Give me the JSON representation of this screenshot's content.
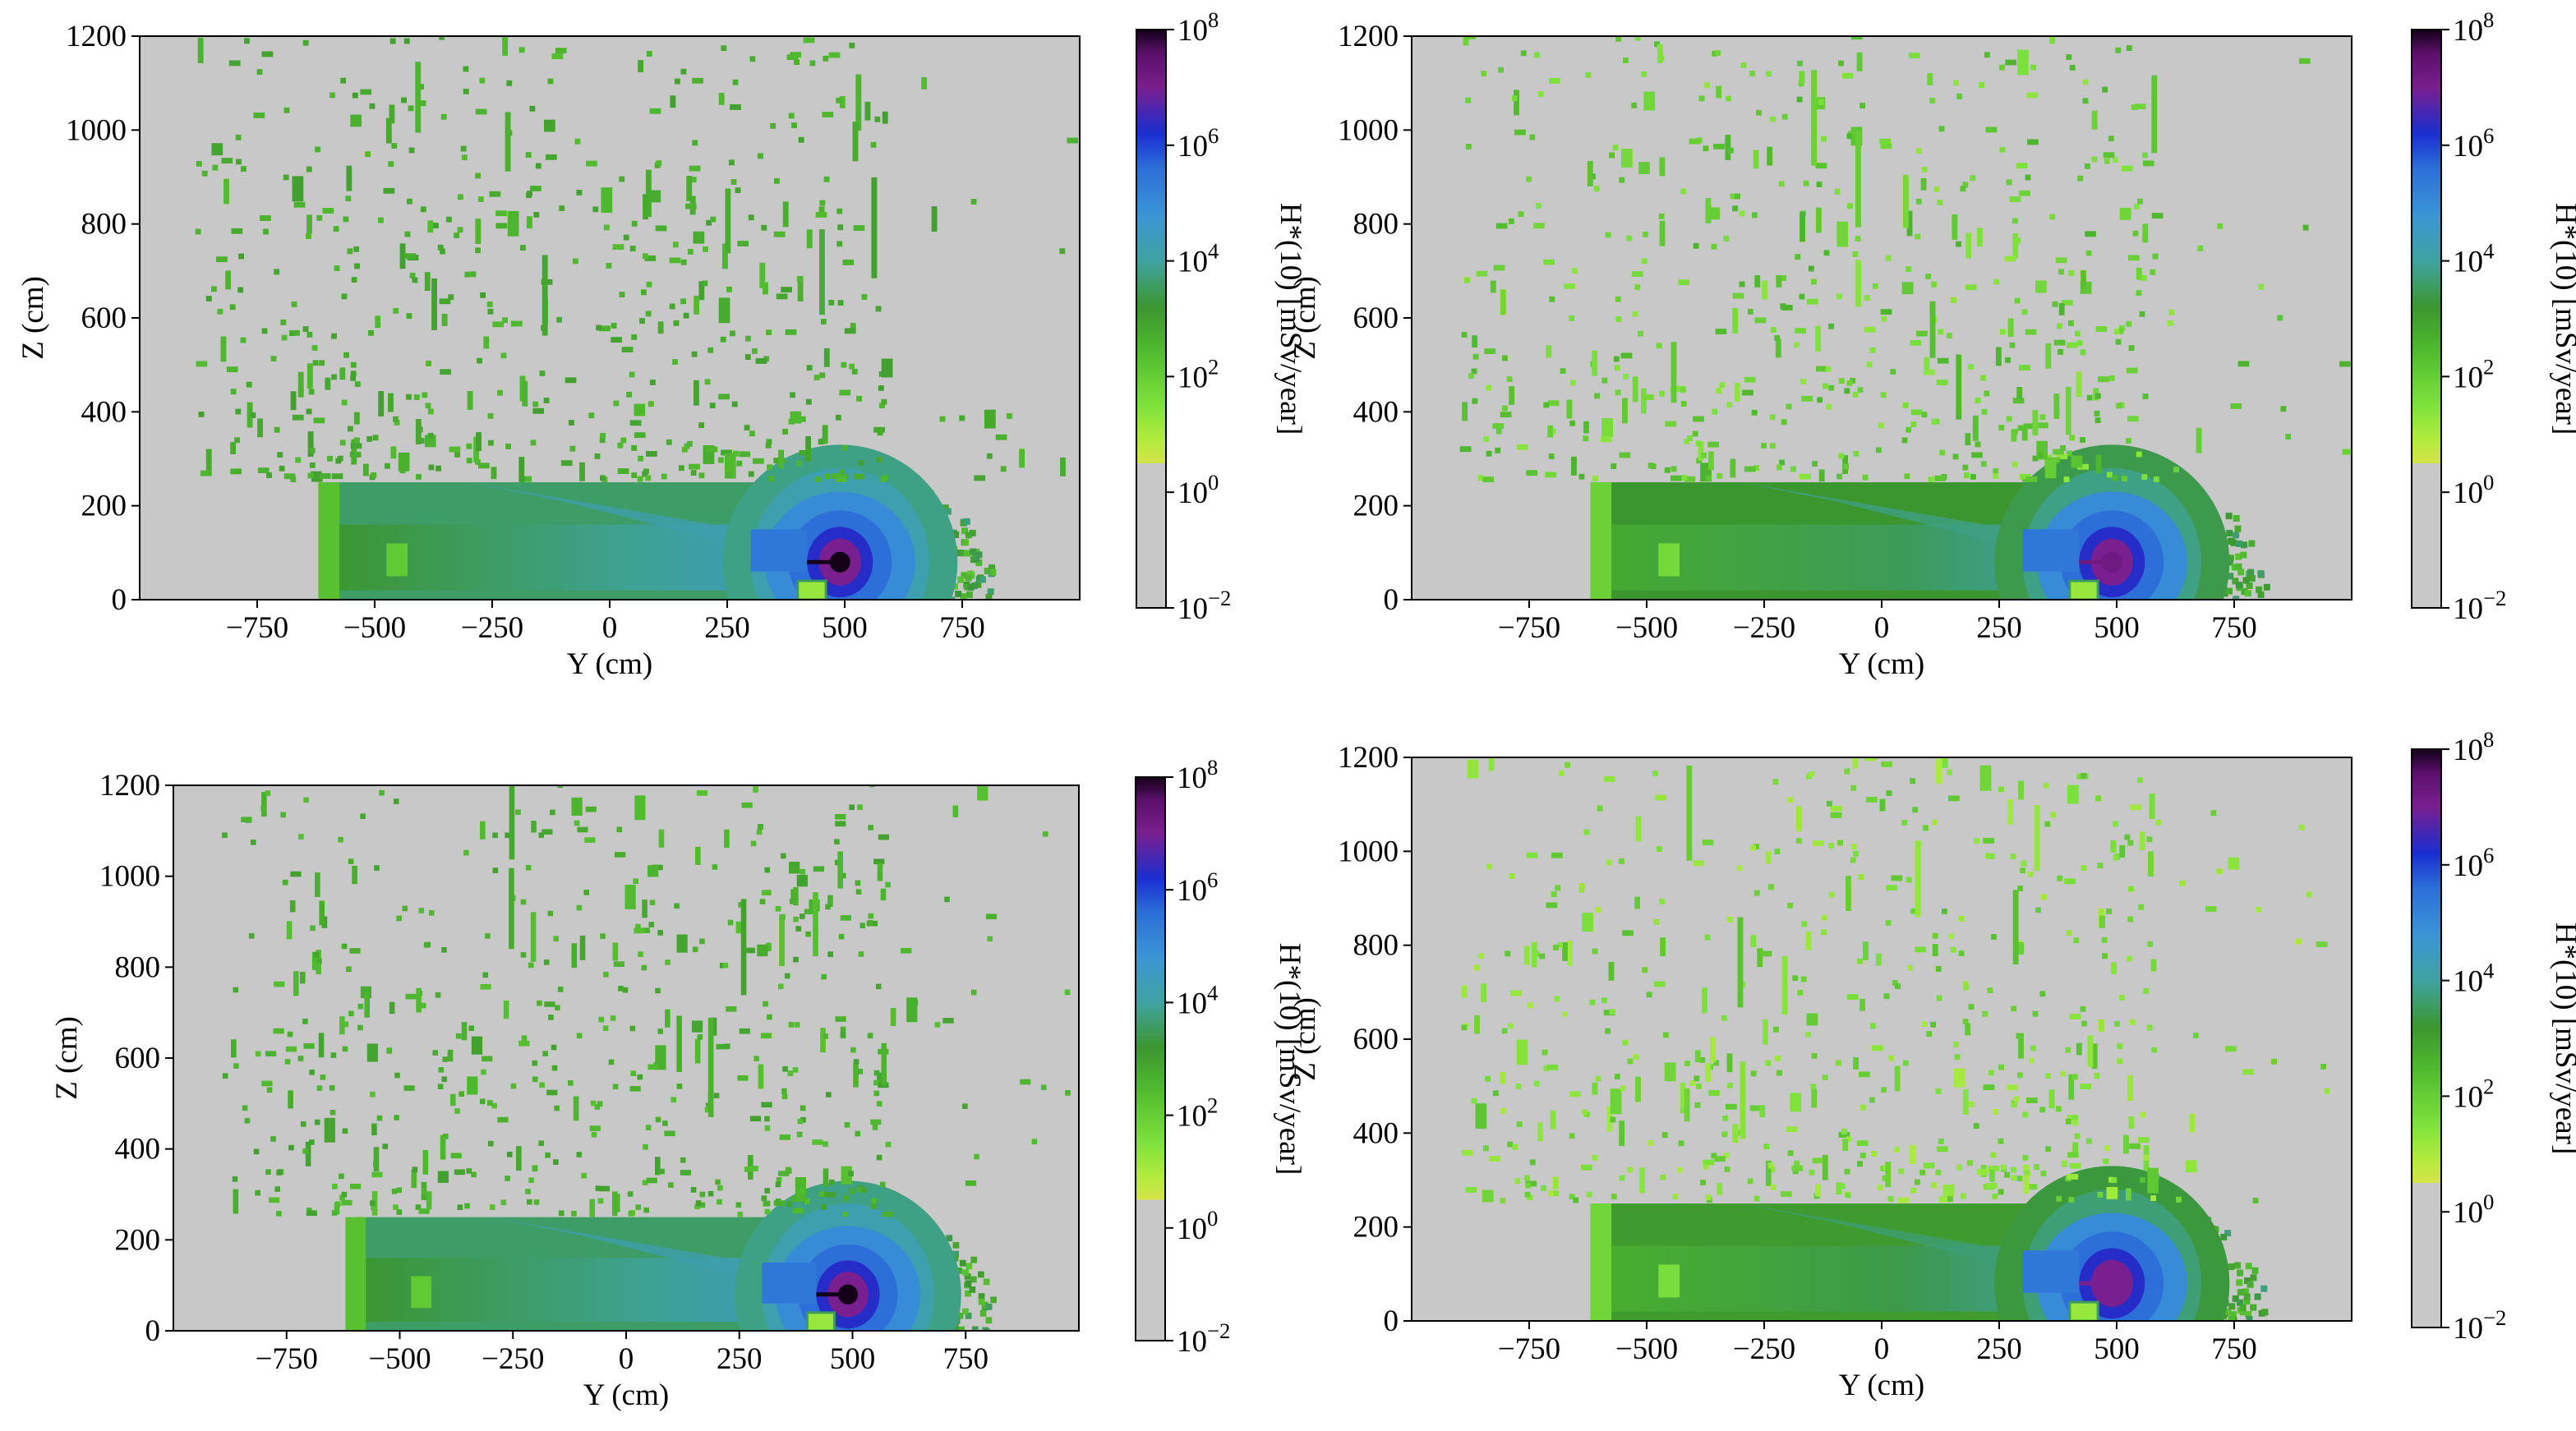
{
  "figure": {
    "panel_count": 4,
    "colors": {
      "background_gray": "#c8c8c8",
      "low_yellow": "#d6e34a",
      "light_green": "#7ee23c",
      "green": "#3f9f2a",
      "teal": "#3fa3a0",
      "sky": "#3b94d6",
      "blue": "#1a2ed0",
      "purple": "#7a1f8f",
      "dark": "#140018"
    },
    "colorbar_stops": [
      {
        "t": 0.0,
        "color": "#c8c8c8"
      },
      {
        "t": 0.2499,
        "color": "#c8c8c8"
      },
      {
        "t": 0.25,
        "color": "#d6e34a"
      },
      {
        "t": 0.29,
        "color": "#b3eb3d"
      },
      {
        "t": 0.35,
        "color": "#7ee23c"
      },
      {
        "t": 0.45,
        "color": "#4eb82e"
      },
      {
        "t": 0.52,
        "color": "#3c962f"
      },
      {
        "t": 0.6,
        "color": "#3fa3a0"
      },
      {
        "t": 0.68,
        "color": "#3b94d6"
      },
      {
        "t": 0.76,
        "color": "#2c6fd8"
      },
      {
        "t": 0.82,
        "color": "#1a2ed0"
      },
      {
        "t": 0.9,
        "color": "#7a1f8f"
      },
      {
        "t": 0.96,
        "color": "#5a0f6a"
      },
      {
        "t": 1.0,
        "color": "#140018"
      }
    ]
  },
  "chart_data": [
    {
      "type": "heatmap",
      "panel": "top-left",
      "xlabel": "Y (cm)",
      "ylabel": "Z (cm)",
      "xlim": [
        -1000,
        1000
      ],
      "ylim": [
        0,
        1200
      ],
      "xticks": [
        -750,
        -500,
        -250,
        0,
        250,
        500,
        750
      ],
      "yticks": [
        0,
        200,
        400,
        600,
        800,
        1000,
        1200
      ],
      "xtick_labels": [
        "−750",
        "−500",
        "−250",
        "0",
        "250",
        "500",
        "750"
      ],
      "ytick_labels": [
        "0",
        "200",
        "400",
        "600",
        "800",
        "1000",
        "1200"
      ],
      "colorbar": {
        "label": "H*(10) [mSv/year]",
        "scale": "log",
        "exp_range": [
          -2,
          8
        ],
        "tick_base": "10",
        "tick_exponents": [
          "8",
          "6",
          "4",
          "2",
          "0",
          "−2"
        ],
        "tick_values": [
          8,
          6,
          4,
          2,
          0,
          -2
        ]
      },
      "peak_location": {
        "y": 490,
        "z": 80
      },
      "peak_exp": 8,
      "shield_region": {
        "y": [
          -600,
          470
        ],
        "z": [
          0,
          250
        ]
      },
      "shield_surface_exp": 3.6,
      "scatter_exp_range": [
        2.4,
        3.0
      ]
    },
    {
      "type": "heatmap",
      "panel": "top-right",
      "xlabel": "Y (cm)",
      "ylabel": "Z (cm)",
      "xlim": [
        -1000,
        1000
      ],
      "ylim": [
        0,
        1200
      ],
      "xticks": [
        -750,
        -500,
        -250,
        0,
        250,
        500,
        750
      ],
      "yticks": [
        0,
        200,
        400,
        600,
        800,
        1000,
        1200
      ],
      "xtick_labels": [
        "−750",
        "−500",
        "−250",
        "0",
        "250",
        "500",
        "750"
      ],
      "ytick_labels": [
        "0",
        "200",
        "400",
        "600",
        "800",
        "1000",
        "1200"
      ],
      "colorbar": {
        "label": "H*(10) [mSv/year]",
        "scale": "log",
        "exp_range": [
          -2,
          8
        ],
        "tick_base": "10",
        "tick_exponents": [
          "8",
          "6",
          "4",
          "2",
          "0",
          "−2"
        ],
        "tick_values": [
          8,
          6,
          4,
          2,
          0,
          -2
        ]
      },
      "peak_location": {
        "y": 490,
        "z": 80
      },
      "peak_exp": 7.2,
      "shield_region": {
        "y": [
          -600,
          470
        ],
        "z": [
          0,
          250
        ]
      },
      "shield_surface_exp": 3.2,
      "scatter_exp_range": [
        1.3,
        2.6
      ]
    },
    {
      "type": "heatmap",
      "panel": "bottom-left",
      "xlabel": "Y (cm)",
      "ylabel": "Z (cm)",
      "xlim": [
        -1000,
        1000
      ],
      "ylim": [
        0,
        1200
      ],
      "xticks": [
        -750,
        -500,
        -250,
        0,
        250,
        500,
        750
      ],
      "yticks": [
        0,
        200,
        400,
        600,
        800,
        1000,
        1200
      ],
      "xtick_labels": [
        "−750",
        "−500",
        "−250",
        "0",
        "250",
        "500",
        "750"
      ],
      "ytick_labels": [
        "0",
        "200",
        "400",
        "600",
        "800",
        "1000",
        "1200"
      ],
      "colorbar": {
        "label": "H*(10) [mSv/year]",
        "scale": "log",
        "exp_range": [
          -2,
          8
        ],
        "tick_base": "10",
        "tick_exponents": [
          "8",
          "6",
          "4",
          "2",
          "0",
          "−2"
        ],
        "tick_values": [
          8,
          6,
          4,
          2,
          0,
          -2
        ]
      },
      "peak_location": {
        "y": 490,
        "z": 80
      },
      "peak_exp": 8,
      "shield_region": {
        "y": [
          -600,
          470
        ],
        "z": [
          0,
          250
        ]
      },
      "shield_surface_exp": 3.6,
      "scatter_exp_range": [
        2.3,
        3.0
      ]
    },
    {
      "type": "heatmap",
      "panel": "bottom-right",
      "xlabel": "Y (cm)",
      "ylabel": "Z (cm)",
      "xlim": [
        -1000,
        1000
      ],
      "ylim": [
        0,
        1200
      ],
      "xticks": [
        -750,
        -500,
        -250,
        0,
        250,
        500,
        750
      ],
      "yticks": [
        0,
        200,
        400,
        600,
        800,
        1000,
        1200
      ],
      "xtick_labels": [
        "−750",
        "−500",
        "−250",
        "0",
        "250",
        "500",
        "750"
      ],
      "ytick_labels": [
        "0",
        "200",
        "400",
        "600",
        "800",
        "1000",
        "1200"
      ],
      "colorbar": {
        "label": "H*(10) [mSv/year]",
        "scale": "log",
        "exp_range": [
          -2,
          8
        ],
        "tick_base": "10",
        "tick_exponents": [
          "8",
          "6",
          "4",
          "2",
          "0",
          "−2"
        ],
        "tick_values": [
          8,
          6,
          4,
          2,
          0,
          -2
        ]
      },
      "peak_location": {
        "y": 490,
        "z": 80
      },
      "peak_exp": 7.0,
      "shield_region": {
        "y": [
          -600,
          470
        ],
        "z": [
          0,
          250
        ]
      },
      "shield_surface_exp": 3.1,
      "scatter_exp_range": [
        1.0,
        2.3
      ]
    }
  ]
}
